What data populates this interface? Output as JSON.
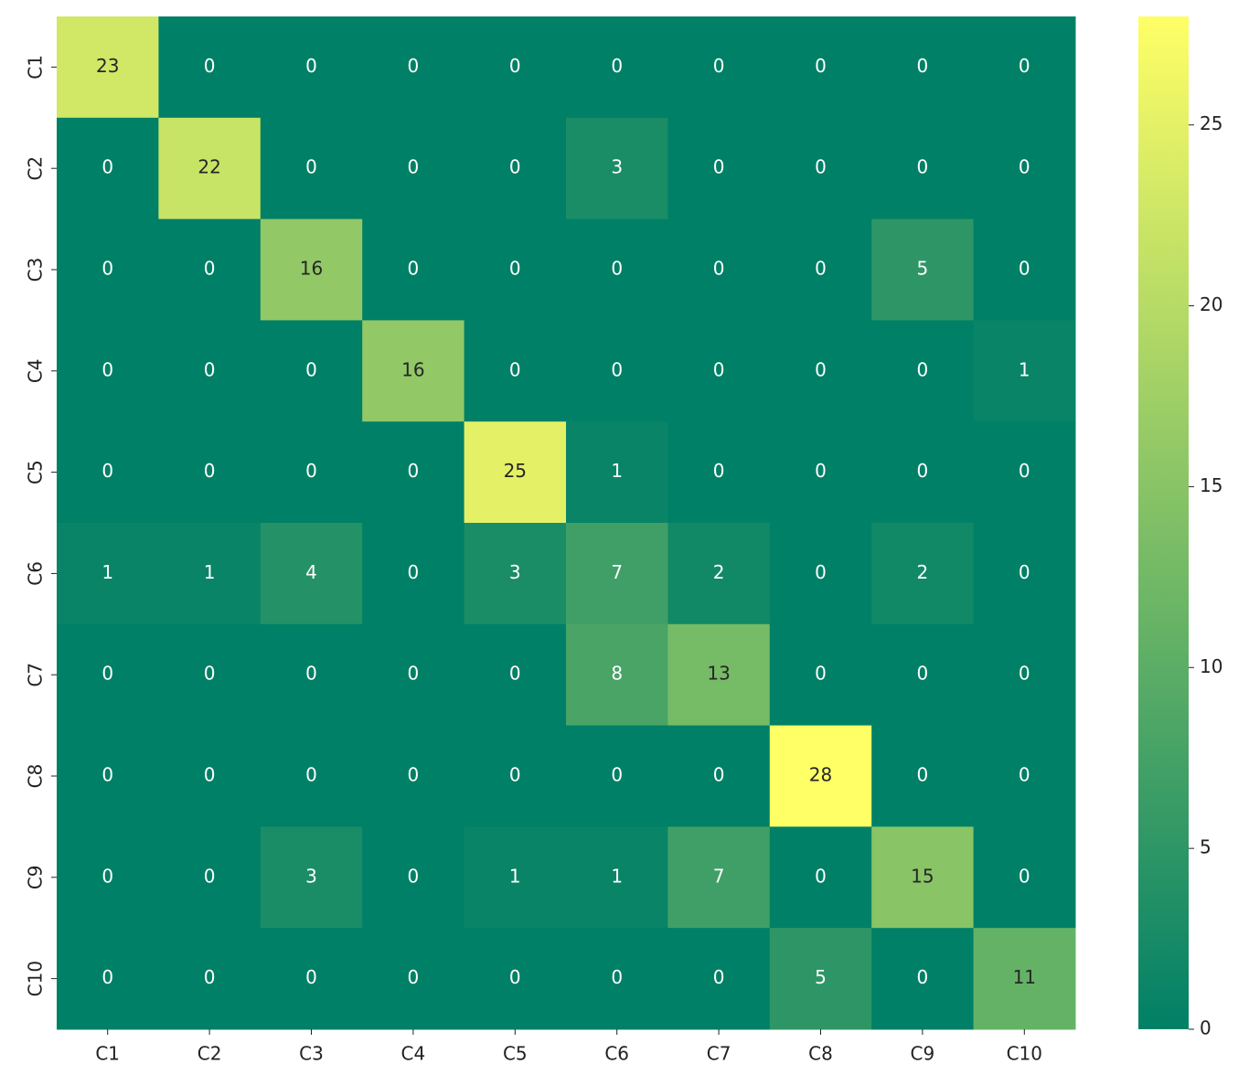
{
  "chart_data": {
    "type": "heatmap",
    "x_categories": [
      "C1",
      "C2",
      "C3",
      "C4",
      "C5",
      "C6",
      "C7",
      "C8",
      "C9",
      "C10"
    ],
    "y_categories": [
      "C1",
      "C2",
      "C3",
      "C4",
      "C5",
      "C6",
      "C7",
      "C8",
      "C9",
      "C10"
    ],
    "values": [
      [
        23,
        0,
        0,
        0,
        0,
        0,
        0,
        0,
        0,
        0
      ],
      [
        0,
        22,
        0,
        0,
        0,
        3,
        0,
        0,
        0,
        0
      ],
      [
        0,
        0,
        16,
        0,
        0,
        0,
        0,
        0,
        5,
        0
      ],
      [
        0,
        0,
        0,
        16,
        0,
        0,
        0,
        0,
        0,
        1
      ],
      [
        0,
        0,
        0,
        0,
        25,
        1,
        0,
        0,
        0,
        0
      ],
      [
        1,
        1,
        4,
        0,
        3,
        7,
        2,
        0,
        2,
        0
      ],
      [
        0,
        0,
        0,
        0,
        0,
        8,
        13,
        0,
        0,
        0
      ],
      [
        0,
        0,
        0,
        0,
        0,
        0,
        0,
        28,
        0,
        0
      ],
      [
        0,
        0,
        3,
        0,
        1,
        1,
        7,
        0,
        15,
        0
      ],
      [
        0,
        0,
        0,
        0,
        0,
        0,
        0,
        5,
        0,
        11
      ]
    ],
    "colormap": "summer",
    "zlim": [
      0,
      28
    ],
    "zticks": [
      0,
      5,
      10,
      15,
      20,
      25
    ]
  }
}
